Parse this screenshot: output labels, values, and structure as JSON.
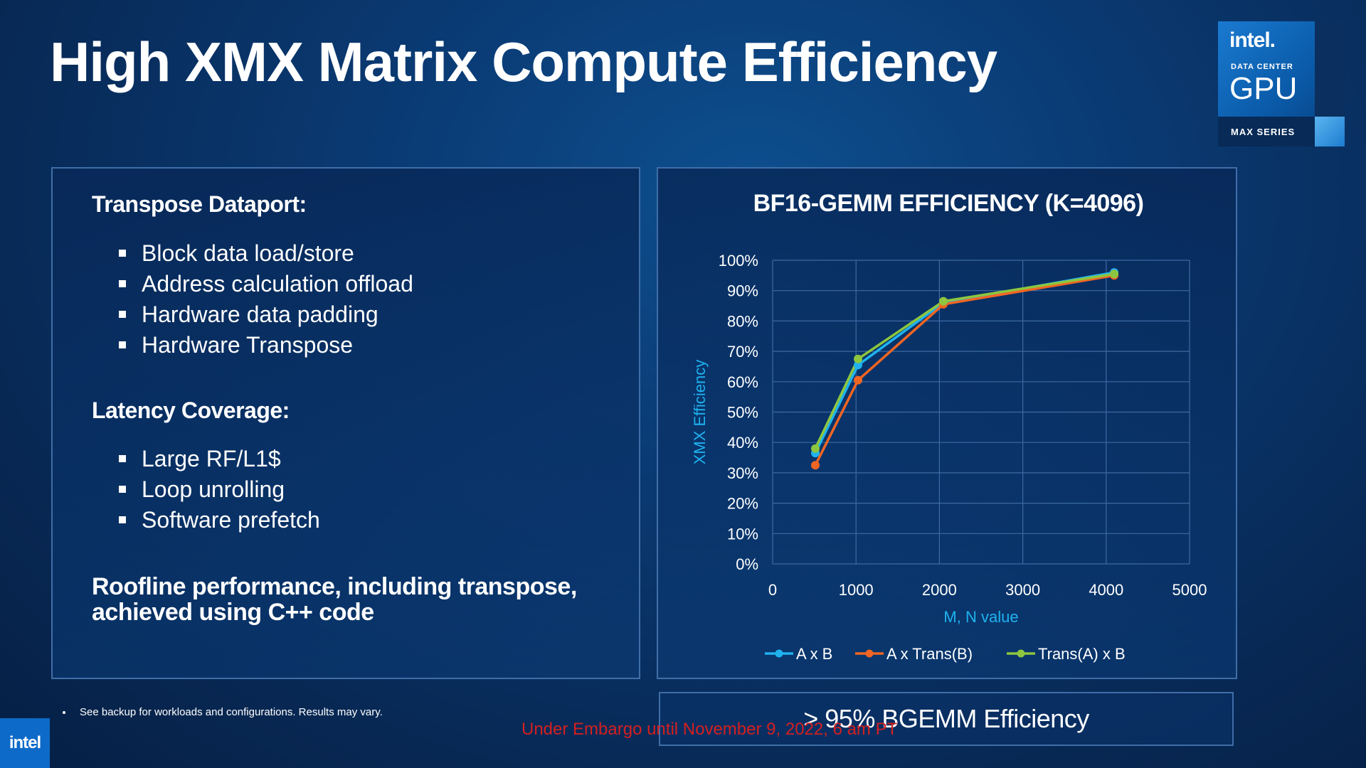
{
  "slide": {
    "title": "High XMX Matrix Compute Efficiency"
  },
  "logo": {
    "brand": "intel.",
    "line1": "DATA CENTER",
    "line2": "GPU",
    "line3": "MAX SERIES"
  },
  "left": {
    "section1_heading": "Transpose Dataport:",
    "section1_items": [
      "Block data load/store",
      "Address calculation offload",
      "Hardware data padding",
      "Hardware Transpose"
    ],
    "section2_heading": "Latency Coverage:",
    "section2_items": [
      "Large RF/L1$",
      "Loop unrolling",
      "Software prefetch"
    ],
    "roofline_line1": "Roofline performance, including transpose,",
    "roofline_line2": "achieved using C++ code"
  },
  "footnote": "See backup for workloads and configurations. Results may vary.",
  "efficiency_callout": "> 95% BGEMM Efficiency",
  "embargo": "Under Embargo until November 9, 2022, 6 am PT",
  "corner_logo": "intel",
  "colors": {
    "axb": "#1fb2ef",
    "axtransb": "#f26522",
    "transaxb": "#8dc63f",
    "accent": "#1fb2ef",
    "embargo": "#d42020"
  },
  "chart_data": {
    "type": "line",
    "title": "BF16-GEMM EFFICIENCY (K=4096)",
    "xlabel": "M, N value",
    "ylabel": "XMX Efficiency",
    "xlim": [
      0,
      5000
    ],
    "ylim": [
      0,
      100
    ],
    "x_ticks": [
      "0",
      "1000",
      "2000",
      "3000",
      "4000",
      "5000"
    ],
    "y_ticks": [
      "0%",
      "10%",
      "20%",
      "30%",
      "40%",
      "50%",
      "60%",
      "70%",
      "80%",
      "90%",
      "100%"
    ],
    "grid": true,
    "legend_position": "bottom",
    "x": [
      512,
      1024,
      2048,
      4096
    ],
    "series": [
      {
        "name": "A x B",
        "values": [
          36.5,
          65.5,
          86,
          96
        ]
      },
      {
        "name": "A x Trans(B)",
        "values": [
          32.5,
          60.5,
          85.5,
          95
        ]
      },
      {
        "name": "Trans(A) x B",
        "values": [
          38,
          67.5,
          86.5,
          95.5
        ]
      }
    ]
  }
}
